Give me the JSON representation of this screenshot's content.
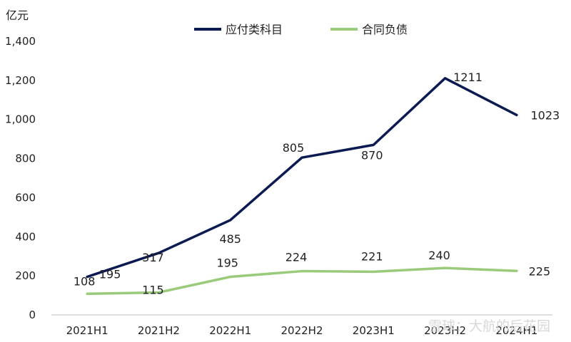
{
  "chart_data": {
    "type": "line",
    "unit_label": "亿元",
    "categories": [
      "2021H1",
      "2021H2",
      "2022H1",
      "2022H2",
      "2023H1",
      "2023H2",
      "2024H1"
    ],
    "series": [
      {
        "name": "应付类科目",
        "color": "#0b1b52",
        "values": [
          195,
          317,
          485,
          805,
          870,
          1211,
          1023
        ]
      },
      {
        "name": "合同负债",
        "color": "#9acb7b",
        "values": [
          108,
          115,
          195,
          224,
          221,
          240,
          225
        ]
      }
    ],
    "ylim": [
      0,
      1400
    ],
    "yticks": [
      0,
      200,
      400,
      600,
      800,
      1000,
      1200,
      1400
    ],
    "ytick_labels": [
      "0",
      "200",
      "400",
      "600",
      "800",
      "1,000",
      "1,200",
      "1,400"
    ],
    "grid": false,
    "legend_position": "top-center"
  },
  "watermark": "雪球：大航的后花园"
}
